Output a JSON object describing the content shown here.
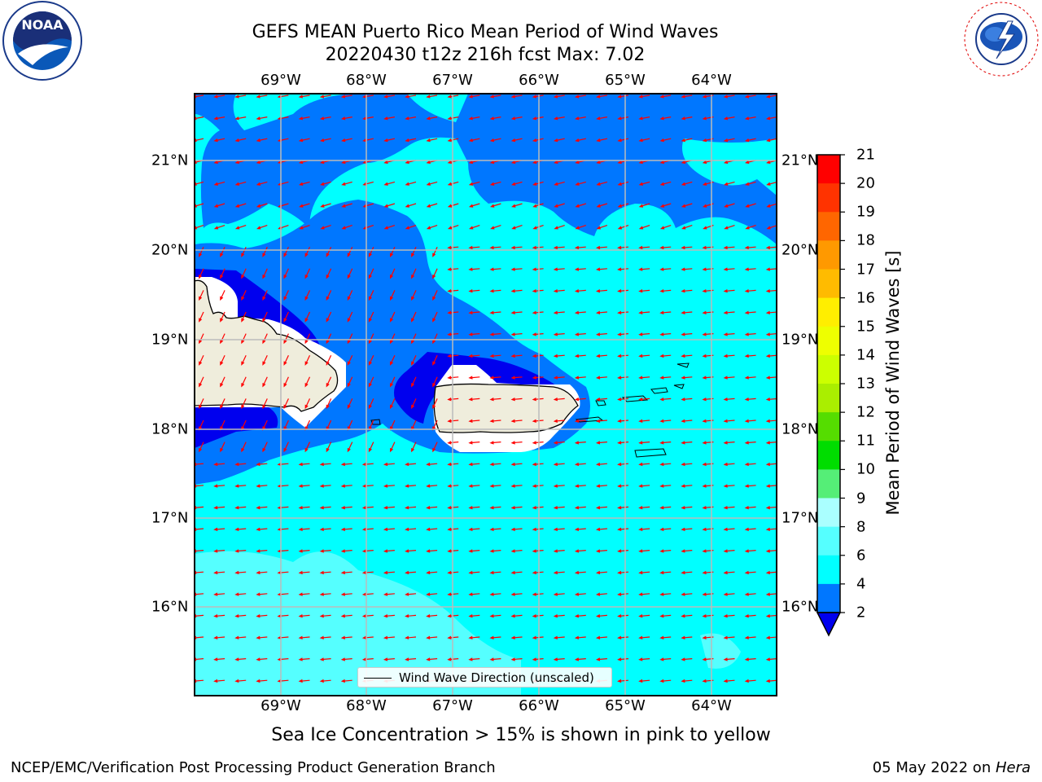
{
  "title": {
    "line1": "GEFS MEAN Puerto Rico Mean Period of Wind Waves",
    "line2": "20220430 t12z 216h fcst   Max: 7.02"
  },
  "axes": {
    "lon_ticks": [
      "69°W",
      "68°W",
      "67°W",
      "66°W",
      "65°W",
      "64°W"
    ],
    "lat_ticks": [
      "21°N",
      "20°N",
      "19°N",
      "18°N",
      "17°N",
      "16°N"
    ]
  },
  "colorbar": {
    "label": "Mean Period of Wind Waves [s]",
    "ticks": [
      "21",
      "20",
      "19",
      "18",
      "17",
      "16",
      "15",
      "14",
      "13",
      "12",
      "11",
      "10",
      "9",
      "8",
      "6",
      "4",
      "2"
    ],
    "colors": {
      "lt2": "#0000ee",
      "2-4": "#0077ff",
      "4-6": "#00ffff",
      "6-8": "#55ffff",
      "8-9": "#aaffff",
      "9-10": "#55ee77",
      "10-11": "#00dd00",
      "11-12": "#55dd00",
      "12-13": "#aaee00",
      "13-14": "#ccff00",
      "14-15": "#eeff00",
      "15-16": "#ffee00",
      "16-17": "#ffbb00",
      "17-18": "#ff9900",
      "18-19": "#ff6600",
      "19-20": "#ff3300",
      "20-21": "#ff0000"
    }
  },
  "map": {
    "land_color": "#efeddc",
    "arrow_color": "#ff0000",
    "grid_color": "#bbbbbb"
  },
  "legend": {
    "label": "Wind Wave Direction (unscaled)"
  },
  "caption": "Sea Ice Concentration > 15% is shown in pink to yellow",
  "footer": {
    "left": "NCEP/EMC/Verification Post Processing Product Generation Branch",
    "right_date": "05 May 2022 on ",
    "right_host": "Hera"
  },
  "logos": {
    "noaa": "NOAA",
    "nws": "NATIONAL WEATHER SERVICE"
  }
}
